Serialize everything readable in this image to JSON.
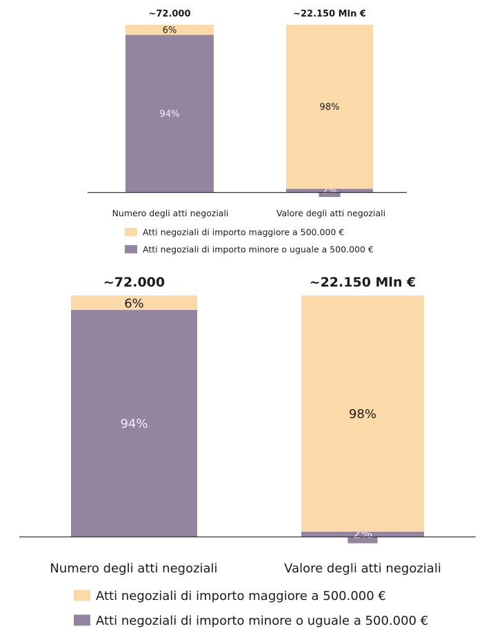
{
  "chart_data": [
    {
      "type": "bar",
      "stacked": true,
      "normalized": true,
      "categories": [
        "Numero degli atti negoziali",
        "Valore degli atti negoziali"
      ],
      "totals": [
        "~72.000",
        "~22.150 Mln €"
      ],
      "series": [
        {
          "name": "Atti negoziali di importo minore o uguale a 500.000 €",
          "values": [
            94,
            2
          ],
          "labels": [
            "94%",
            "2%"
          ],
          "color": "#9385a0"
        },
        {
          "name": "Atti negoziali di importo maggiore a 500.000 €",
          "values": [
            6,
            98
          ],
          "labels": [
            "6%",
            "98%"
          ],
          "color": "#fcd9a8"
        }
      ],
      "ylim": [
        0,
        100
      ],
      "legend_position": "bottom"
    },
    {
      "type": "bar",
      "stacked": true,
      "normalized": true,
      "categories": [
        "Numero degli atti negoziali",
        "Valore degli atti negoziali"
      ],
      "totals": [
        "~72.000",
        "~22.150 Mln €"
      ],
      "series": [
        {
          "name": "Atti negoziali di importo minore o uguale a 500.000 €",
          "values": [
            94,
            2
          ],
          "labels": [
            "94%",
            "2%"
          ],
          "color": "#9385a0"
        },
        {
          "name": "Atti negoziali di importo maggiore a 500.000 €",
          "values": [
            6,
            98
          ],
          "labels": [
            "6%",
            "98%"
          ],
          "color": "#fcd9a8"
        }
      ],
      "ylim": [
        0,
        100
      ],
      "legend_position": "bottom"
    }
  ]
}
